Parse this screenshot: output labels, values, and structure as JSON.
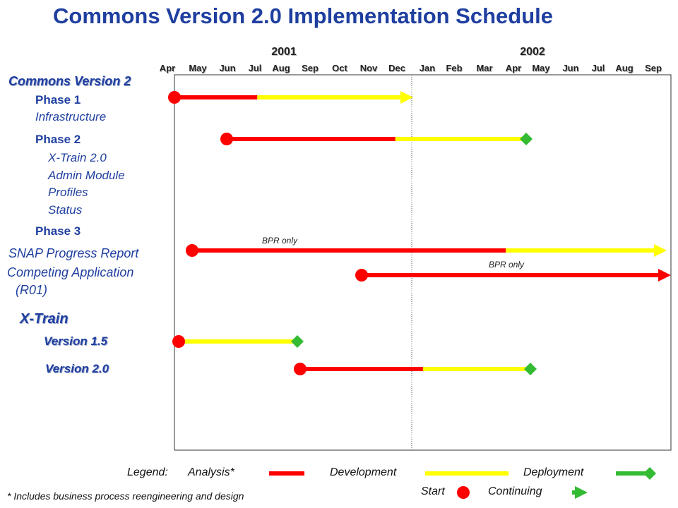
{
  "title": "Commons Version 2.0 Implementation Schedule",
  "years": [
    "2001",
    "2002"
  ],
  "months": [
    "Apr",
    "May",
    "Jun",
    "Jul",
    "Aug",
    "Sep",
    "Oct",
    "Nov",
    "Dec",
    "Jan",
    "Feb",
    "Mar",
    "Apr",
    "May",
    "Jun",
    "Jul",
    "Aug",
    "Sep"
  ],
  "labels": {
    "commons": "Commons Version 2",
    "phase1": "Phase 1",
    "infrastructure": "Infrastructure",
    "phase2": "Phase 2",
    "xtrain20": "X-Train 2.0",
    "admin": "Admin Module",
    "profiles": "Profiles",
    "status": "Status",
    "phase3": "Phase 3",
    "snap": "SNAP Progress Report",
    "competing": "Competing Application",
    "r01": "(R01)",
    "xtrain": "X-Train",
    "v15": "Version 1.5",
    "v20": "Version 2.0"
  },
  "annotations": [
    "BPR only",
    "BPR only"
  ],
  "legend": {
    "prefix": "Legend:",
    "analysis": "Analysis*",
    "development": "Development",
    "deployment": "Deployment",
    "start": "Start",
    "continuing": "Continuing",
    "footnote": "* Includes business process reengineering and design"
  },
  "colors": {
    "analysis": "#ff0000",
    "development": "#ffff00",
    "deployment": "#33bb33",
    "title": "#1f3fa0",
    "frame": "#333333"
  },
  "chart_data": {
    "type": "gantt",
    "time_unit": "month",
    "time_range": [
      "Apr 2001",
      "Sep 2002"
    ],
    "divider": "Dec 2001 / Jan 2002",
    "tasks": [
      {
        "label": "Phase 1 Infrastructure",
        "analysis": [
          "Apr 2001",
          "Jul 2001"
        ],
        "development": [
          "Jul 2001",
          "Dec 2001"
        ],
        "end_marker": "continuing"
      },
      {
        "label": "Phase 2",
        "analysis": [
          "May 2001",
          "Dec 2001"
        ],
        "development": [
          "Dec 2001",
          "Apr 2002"
        ],
        "end_marker": "deployment"
      },
      {
        "label": "SNAP Progress Report",
        "analysis": [
          "Apr 2001",
          "Apr 2002"
        ],
        "development": [
          "Apr 2002",
          "Sep 2002"
        ],
        "end_marker": "continuing",
        "note": "BPR only"
      },
      {
        "label": "Competing Application (R01)",
        "analysis": [
          "Oct 2001",
          "Sep 2002"
        ],
        "end_marker": "continuing",
        "note": "BPR only"
      },
      {
        "label": "Version 1.5",
        "development": [
          "Apr 2001",
          "Aug 2001"
        ],
        "end_marker": "deployment"
      },
      {
        "label": "Version 2.0",
        "analysis": [
          "Aug 2001",
          "Jan 2002"
        ],
        "development": [
          "Jan 2002",
          "Apr 2002"
        ],
        "end_marker": "deployment"
      }
    ]
  }
}
